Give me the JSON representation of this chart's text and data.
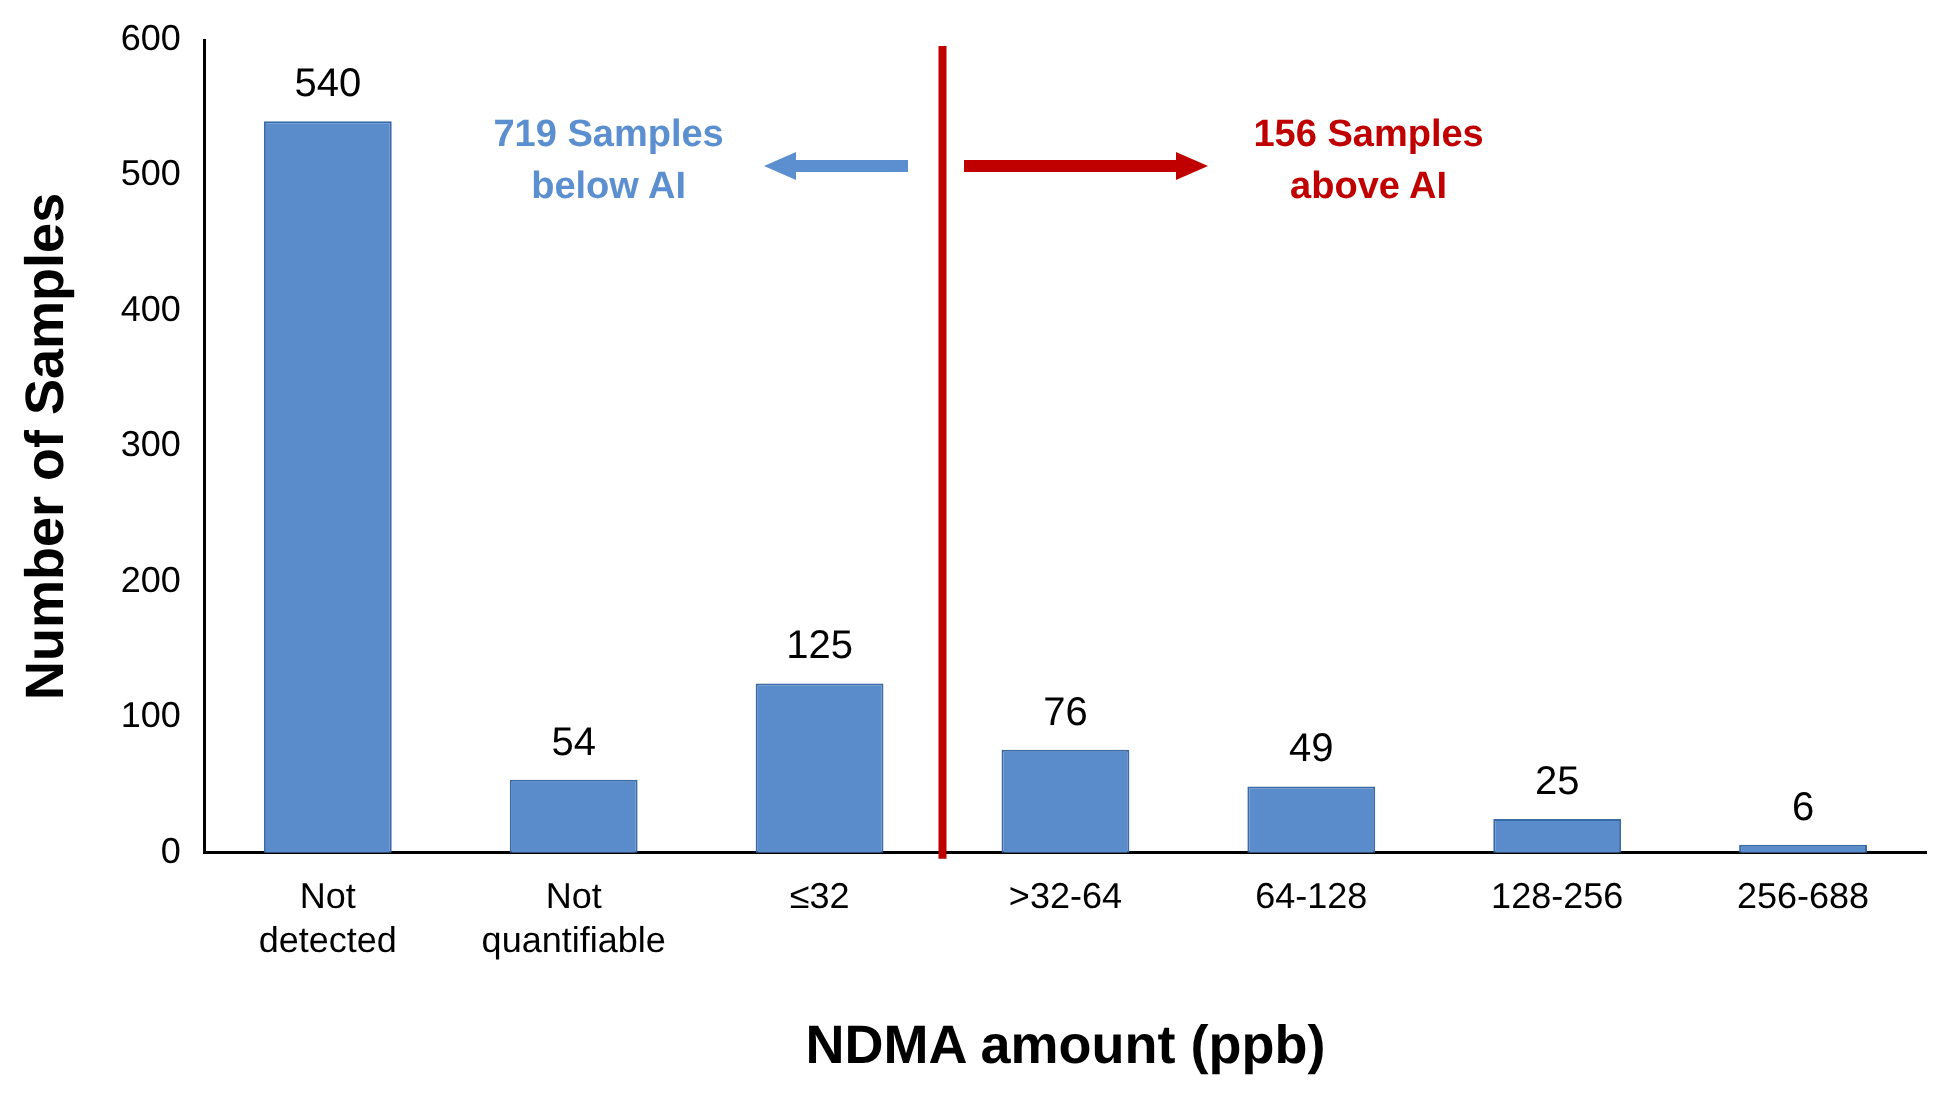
{
  "chart_data": {
    "type": "bar",
    "xlabel": "NDMA amount (ppb)",
    "ylabel": "Number of Samples",
    "categories": [
      "Not detected",
      "Not quantifiable",
      "≤32",
      ">32-64",
      "64-128",
      "128-256",
      "256-688"
    ],
    "values": [
      540,
      54,
      125,
      76,
      49,
      25,
      6
    ],
    "color": "#5a8ccc",
    "ylim": [
      0,
      600
    ],
    "yticks": [
      0,
      100,
      200,
      300,
      400,
      500,
      600
    ],
    "grid": false,
    "legend": false,
    "data_labels": true,
    "ref_lines": [
      {
        "axis": "x",
        "value": ">32-64",
        "color": "#c00000"
      }
    ],
    "annotations": [
      "719 Samples below AI",
      "156 Samples above AI"
    ]
  }
}
